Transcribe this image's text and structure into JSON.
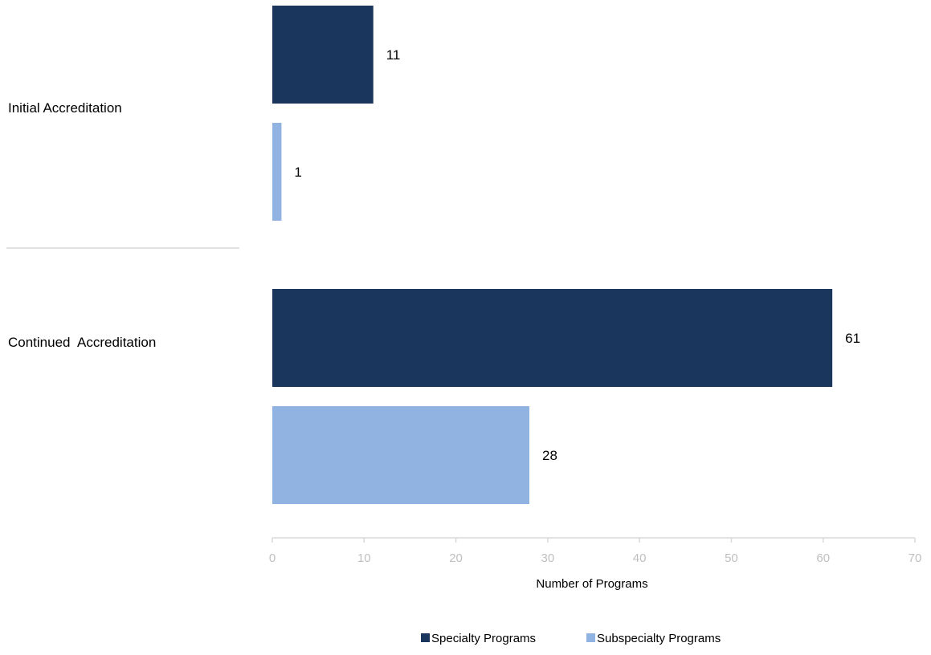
{
  "chart_data": {
    "type": "bar",
    "orientation": "horizontal",
    "categories": [
      "Initial Accreditation",
      "Continued  Accreditation"
    ],
    "series": [
      {
        "name": "Specialty Programs",
        "values": [
          11,
          61
        ],
        "color": "#1b365d"
      },
      {
        "name": "Subspecialty Programs",
        "values": [
          1,
          28
        ],
        "color": "#91b3e2"
      }
    ],
    "xlabel": "Number of Programs",
    "xlim": [
      0,
      70
    ],
    "xticks": [
      0,
      10,
      20,
      30,
      40,
      50,
      60,
      70
    ],
    "grid": false,
    "legend_position": "bottom"
  }
}
